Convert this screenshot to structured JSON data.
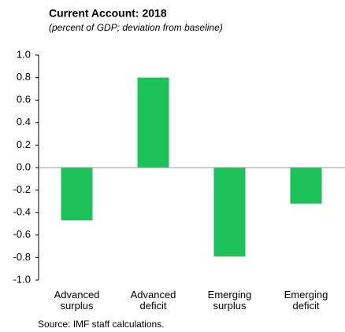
{
  "chart_data": {
    "type": "bar",
    "title": "Current Account: 2018",
    "subtitle": "(percent of GDP; deviation from baseline)",
    "categories": [
      "Advanced surplus",
      "Advanced deficit",
      "Emerging surplus",
      "Emerging deficit"
    ],
    "values": [
      -0.47,
      0.8,
      -0.79,
      -0.32
    ],
    "color": "#1cc15a",
    "ylim": [
      -1,
      1
    ],
    "yticks": [
      {
        "value": -1,
        "label": "-1.0"
      },
      -0.8,
      -0.6,
      -0.4,
      -0.2,
      {
        "value": 0,
        "label": "0.0"
      },
      0.2,
      0.4,
      0.6,
      0.8,
      {
        "value": 1,
        "label": "1.0"
      }
    ],
    "grid": false,
    "note": "Source:  IMF staff calculations."
  }
}
